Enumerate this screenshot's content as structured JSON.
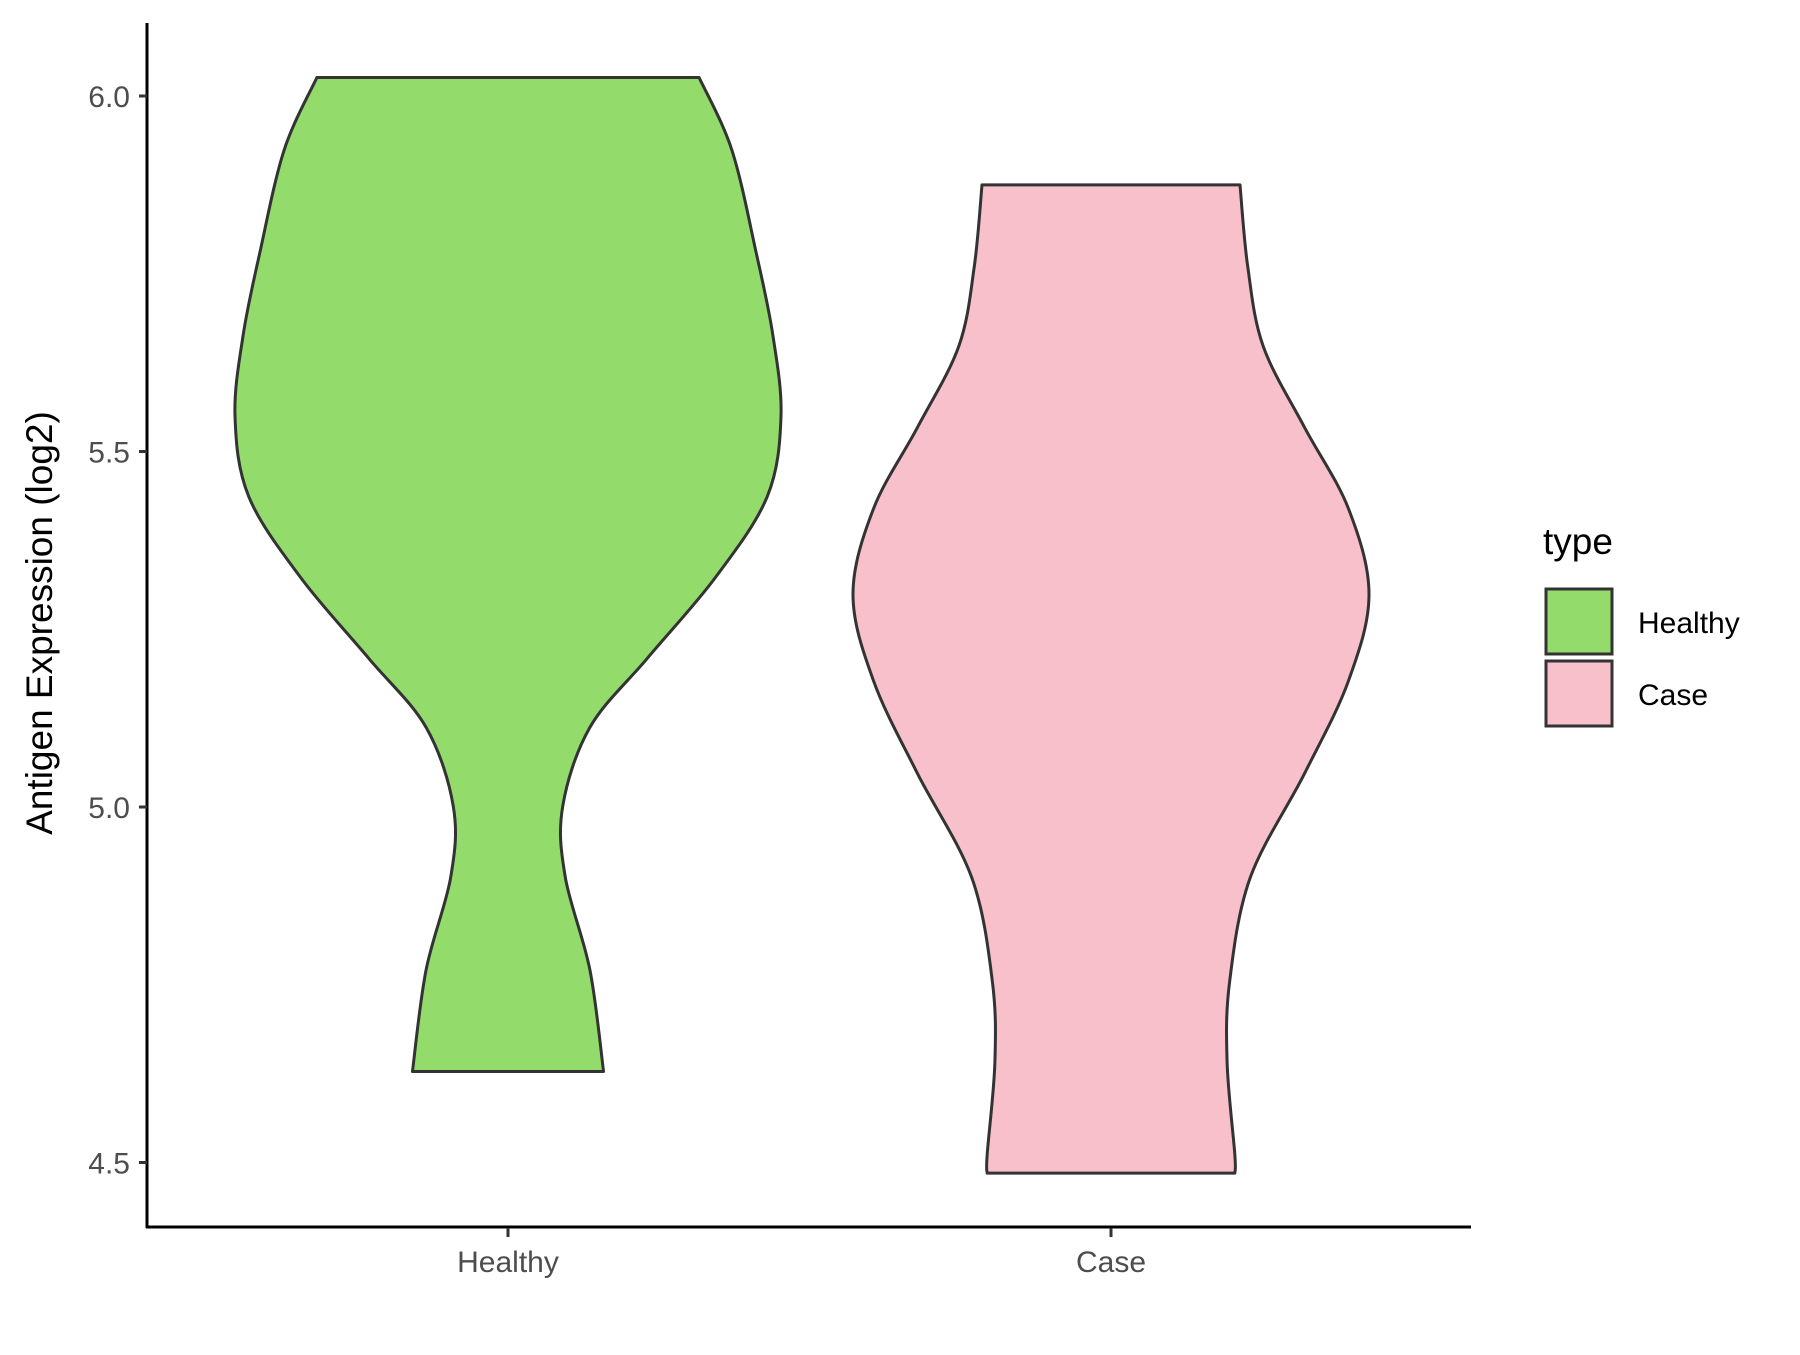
{
  "chart_data": {
    "type": "violin",
    "title": "",
    "xlabel": "",
    "ylabel": "Antigen Expression (log2)",
    "ylim": [
      4.41,
      6.1
    ],
    "y_ticks": [
      "4.5",
      "5.0",
      "5.5",
      "6.0"
    ],
    "y_tick_values": [
      4.5,
      5.0,
      5.5,
      6.0
    ],
    "categories": [
      "Healthy",
      "Case"
    ],
    "grid": false,
    "legend": {
      "title": "type",
      "placement": "right",
      "entries": [
        "Healthy",
        "Case"
      ]
    },
    "series": [
      {
        "name": "Healthy",
        "color": "#93DC6B",
        "range": [
          4.628,
          6.026
        ],
        "density_profile": [
          [
            6.026,
            0.7
          ],
          [
            5.924,
            0.82
          ],
          [
            5.778,
            0.91
          ],
          [
            5.664,
            0.97
          ],
          [
            5.55,
            1.0
          ],
          [
            5.437,
            0.95
          ],
          [
            5.323,
            0.76
          ],
          [
            5.209,
            0.51
          ],
          [
            5.112,
            0.3
          ],
          [
            5.0,
            0.2
          ],
          [
            4.901,
            0.21
          ],
          [
            4.771,
            0.3
          ],
          [
            4.628,
            0.35
          ]
        ]
      },
      {
        "name": "Case",
        "color": "#F7C0CB",
        "range": [
          4.485,
          5.875
        ],
        "density_profile": [
          [
            5.875,
            0.5
          ],
          [
            5.76,
            0.53
          ],
          [
            5.648,
            0.59
          ],
          [
            5.534,
            0.75
          ],
          [
            5.42,
            0.92
          ],
          [
            5.299,
            1.0
          ],
          [
            5.177,
            0.92
          ],
          [
            5.047,
            0.75
          ],
          [
            4.901,
            0.54
          ],
          [
            4.755,
            0.46
          ],
          [
            4.641,
            0.45
          ],
          [
            4.511,
            0.48
          ],
          [
            4.485,
            0.48
          ]
        ]
      }
    ]
  }
}
